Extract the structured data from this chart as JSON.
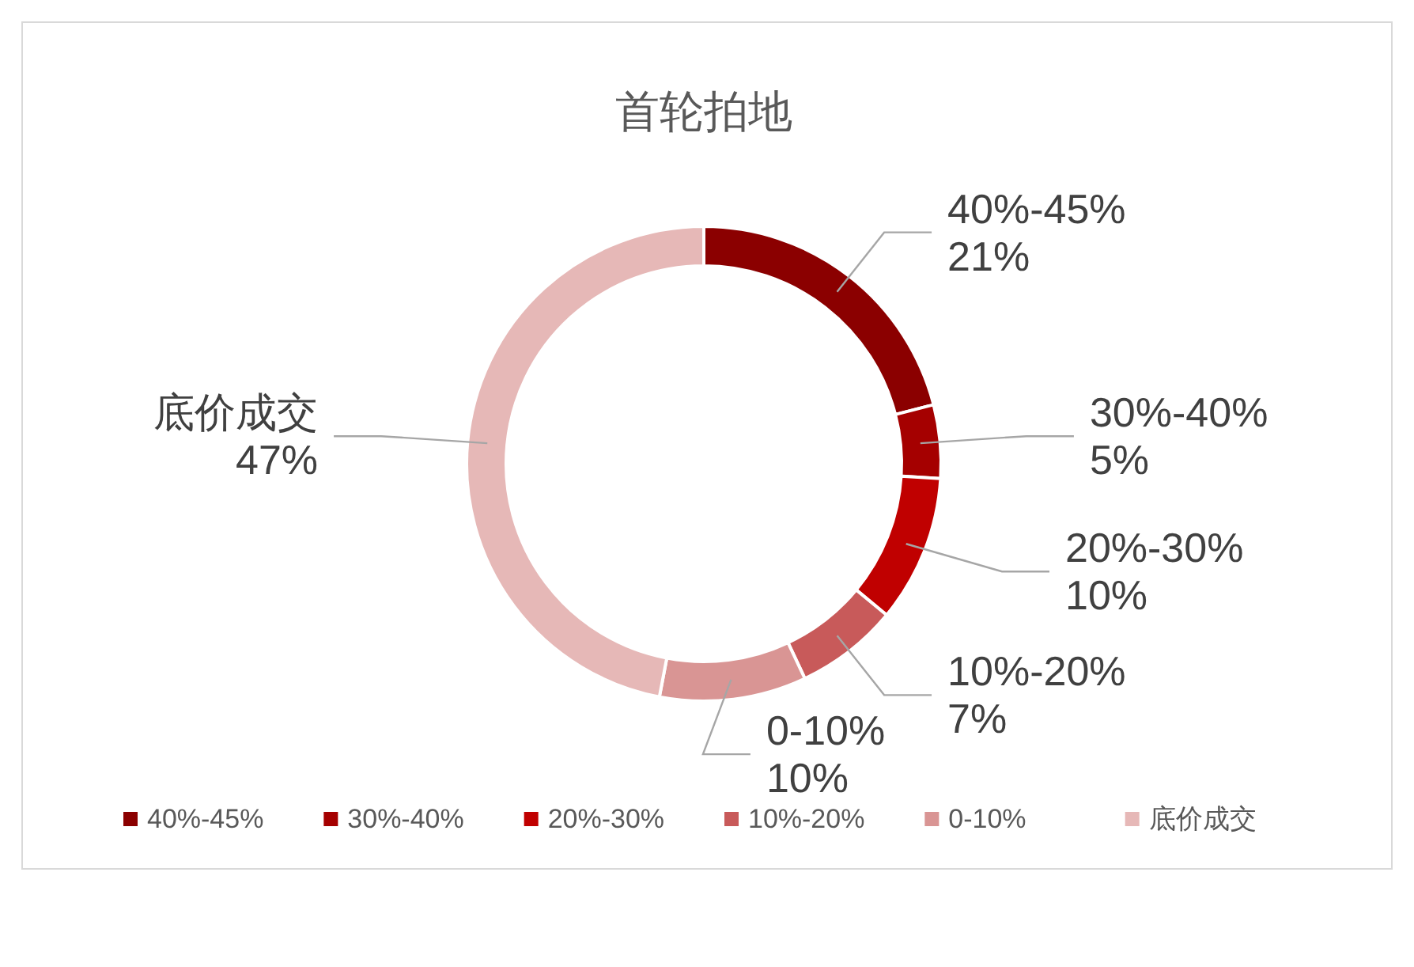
{
  "chart_data": {
    "type": "donut",
    "title": "首轮拍地",
    "categories": [
      "40%-45%",
      "30%-40%",
      "20%-30%",
      "10%-20%",
      "0-10%",
      "底价成交"
    ],
    "values": [
      21,
      5,
      10,
      7,
      10,
      47
    ],
    "colors": [
      "#8b0000",
      "#a50000",
      "#c00000",
      "#c85a5a",
      "#d99594",
      "#e6b8b7"
    ],
    "value_labels": [
      "21%",
      "5%",
      "10%",
      "7%",
      "10%",
      "47%"
    ],
    "legend": "bottom"
  }
}
